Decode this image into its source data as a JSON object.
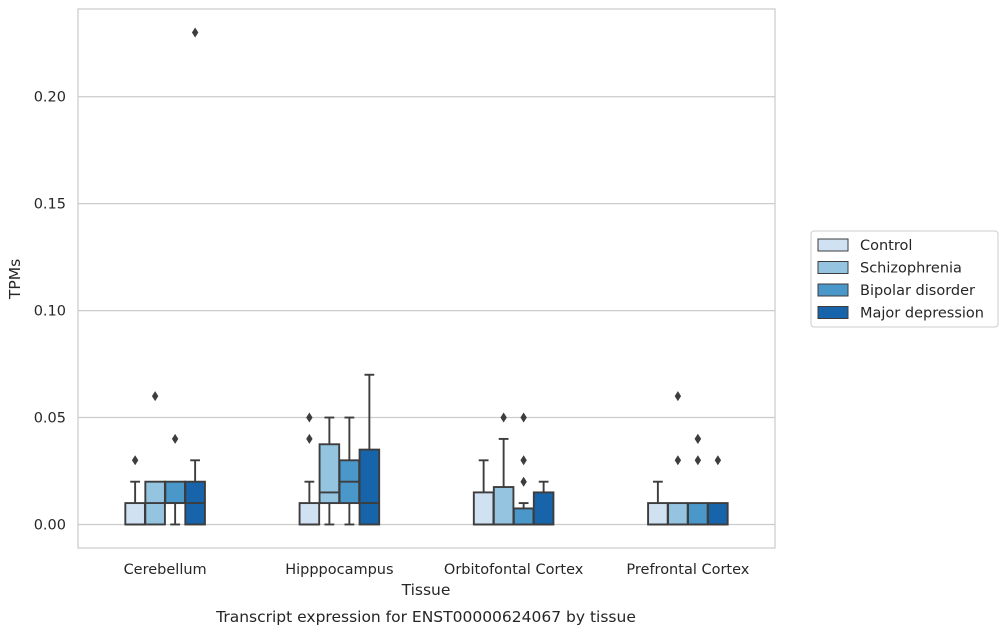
{
  "chart_data": {
    "type": "boxplot",
    "xlabel": "Tissue",
    "ylabel": "TPMs",
    "caption": "Transcript expression for ENST00000624067 by tissue",
    "categories": [
      "Cerebellum",
      "Hipppocampus",
      "Orbitofontal Cortex",
      "Prefrontal Cortex"
    ],
    "ylim": [
      -0.011,
      0.241
    ],
    "yticks": [
      0.0,
      0.05,
      0.1,
      0.15,
      0.2
    ],
    "ytick_labels": [
      "0.00",
      "0.05",
      "0.10",
      "0.15",
      "0.20"
    ],
    "grid": "horizontal",
    "legend_position": "right",
    "series": [
      {
        "name": "Control",
        "color": "#d0e1f2",
        "boxes": [
          {
            "q1": 0.0,
            "median": 0.0,
            "q3": 0.01,
            "whisker_low": 0.0,
            "whisker_high": 0.02,
            "outliers": [
              0.03
            ]
          },
          {
            "q1": 0.0,
            "median": 0.0,
            "q3": 0.01,
            "whisker_low": 0.0,
            "whisker_high": 0.02,
            "outliers": [
              0.04,
              0.05
            ]
          },
          {
            "q1": 0.0,
            "median": 0.0,
            "q3": 0.015,
            "whisker_low": 0.0,
            "whisker_high": 0.03,
            "outliers": []
          },
          {
            "q1": 0.0,
            "median": 0.0,
            "q3": 0.01,
            "whisker_low": 0.0,
            "whisker_high": 0.02,
            "outliers": []
          }
        ]
      },
      {
        "name": "Schizophrenia",
        "color": "#94c4df",
        "boxes": [
          {
            "q1": 0.0,
            "median": 0.01,
            "q3": 0.02,
            "whisker_low": 0.0,
            "whisker_high": 0.02,
            "outliers": [
              0.06
            ]
          },
          {
            "q1": 0.01,
            "median": 0.015,
            "q3": 0.0375,
            "whisker_low": 0.0,
            "whisker_high": 0.05,
            "outliers": []
          },
          {
            "q1": 0.0,
            "median": 0.0,
            "q3": 0.0175,
            "whisker_low": 0.0,
            "whisker_high": 0.04,
            "outliers": [
              0.05
            ]
          },
          {
            "q1": 0.0,
            "median": 0.0,
            "q3": 0.01,
            "whisker_low": 0.0,
            "whisker_high": 0.01,
            "outliers": [
              0.06,
              0.03
            ]
          }
        ]
      },
      {
        "name": "Bipolar disorder",
        "color": "#4a98c9",
        "boxes": [
          {
            "q1": 0.01,
            "median": 0.01,
            "q3": 0.02,
            "whisker_low": 0.0,
            "whisker_high": 0.02,
            "outliers": [
              0.04
            ]
          },
          {
            "q1": 0.01,
            "median": 0.02,
            "q3": 0.03,
            "whisker_low": 0.0,
            "whisker_high": 0.05,
            "outliers": []
          },
          {
            "q1": 0.0,
            "median": 0.0,
            "q3": 0.0075,
            "whisker_low": 0.0,
            "whisker_high": 0.01,
            "outliers": [
              0.05,
              0.03,
              0.02
            ]
          },
          {
            "q1": 0.0,
            "median": 0.0,
            "q3": 0.01,
            "whisker_low": 0.0,
            "whisker_high": 0.01,
            "outliers": [
              0.04,
              0.04,
              0.03
            ]
          }
        ]
      },
      {
        "name": "Major depression",
        "color": "#1764ab",
        "boxes": [
          {
            "q1": 0.0,
            "median": 0.01,
            "q3": 0.02,
            "whisker_low": 0.0,
            "whisker_high": 0.03,
            "outliers": [
              0.23
            ]
          },
          {
            "q1": 0.0,
            "median": 0.01,
            "q3": 0.035,
            "whisker_low": 0.0,
            "whisker_high": 0.07,
            "outliers": []
          },
          {
            "q1": 0.0,
            "median": 0.0,
            "q3": 0.015,
            "whisker_low": 0.0,
            "whisker_high": 0.02,
            "outliers": []
          },
          {
            "q1": 0.0,
            "median": 0.0,
            "q3": 0.01,
            "whisker_low": 0.0,
            "whisker_high": 0.01,
            "outliers": [
              0.03
            ]
          }
        ]
      }
    ]
  }
}
